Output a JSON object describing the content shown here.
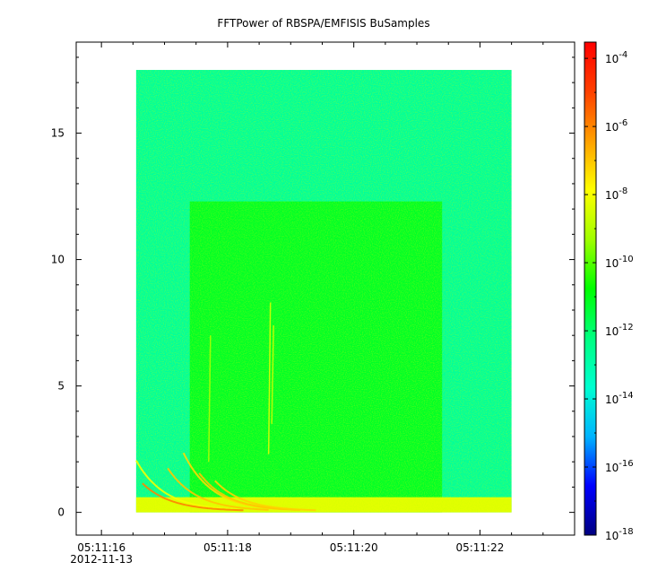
{
  "chart_data": {
    "type": "heatmap",
    "title": "FFTPower of RBSPA/EMFISIS  BuSamples",
    "xlabel": "",
    "ylabel": "",
    "x_axis": {
      "range": [
        "05:11:15.6",
        "05:11:23.5"
      ],
      "ticks": [
        {
          "value": "05:11:16",
          "label": "05:11:16",
          "sublabel": "2012-11-13"
        },
        {
          "value": "05:11:18",
          "label": "05:11:18"
        },
        {
          "value": "05:11:20",
          "label": "05:11:20"
        },
        {
          "value": "05:11:22",
          "label": "05:11:22"
        }
      ],
      "minor_tick_step_s": 0.5
    },
    "y_axis": {
      "range": [
        -0.9,
        18.6
      ],
      "ticks": [
        {
          "value": 0,
          "label": "0"
        },
        {
          "value": 5,
          "label": "5"
        },
        {
          "value": 10,
          "label": "10"
        },
        {
          "value": 15,
          "label": "15"
        }
      ],
      "minor_tick_step": 1
    },
    "data_extent": {
      "x": [
        "05:11:16.55",
        "05:11:22.50"
      ],
      "y": [
        0,
        17.5
      ]
    },
    "colorbar": {
      "scale": "log",
      "range": [
        1e-18,
        0.0003
      ],
      "ticks": [
        {
          "exp": -4,
          "base": "10",
          "sup": "-4"
        },
        {
          "exp": -6,
          "base": "10",
          "sup": "-6"
        },
        {
          "exp": -8,
          "base": "10",
          "sup": "-8"
        },
        {
          "exp": -10,
          "base": "10",
          "sup": "-10"
        },
        {
          "exp": -12,
          "base": "10",
          "sup": "-12"
        },
        {
          "exp": -14,
          "base": "10",
          "sup": "-14"
        },
        {
          "exp": -16,
          "base": "10",
          "sup": "-16"
        },
        {
          "exp": -18,
          "base": "10",
          "sup": "-18"
        }
      ],
      "colors": [
        "#000080",
        "#0000ff",
        "#00b4ff",
        "#00ffd0",
        "#00ff80",
        "#00ff00",
        "#a0ff00",
        "#ffff00",
        "#ffa000",
        "#ff4000",
        "#ff0000"
      ]
    },
    "regions": [
      {
        "name": "background",
        "x": [
          "05:11:16.55",
          "05:11:22.50"
        ],
        "y": [
          0,
          17.5
        ],
        "log10_power": -12.7
      },
      {
        "name": "enhanced-band",
        "x": [
          "05:11:17.40",
          "05:11:21.40"
        ],
        "y": [
          0,
          12.3
        ],
        "log10_power": -11.2
      },
      {
        "name": "low-frequency-floor",
        "x": [
          "05:11:16.55",
          "05:11:22.50"
        ],
        "y": [
          0,
          0.6
        ],
        "log10_power": -8.3
      }
    ],
    "streaks": [
      {
        "time": "05:11:18.65",
        "y": [
          2.3,
          8.3
        ],
        "log10_power": -8.3
      },
      {
        "time": "05:11:18.70",
        "y": [
          3.5,
          7.4
        ],
        "log10_power": -8.6
      },
      {
        "time": "05:11:17.70",
        "y": [
          2.0,
          7.0
        ],
        "log10_power": -9.0
      }
    ],
    "dispersive_tails": [
      {
        "start": "05:11:16.55",
        "y0": 2.0,
        "log10_power": -8.0
      },
      {
        "start": "05:11:16.65",
        "y0": 1.1,
        "log10_power": -6.0
      },
      {
        "start": "05:11:17.05",
        "y0": 1.7,
        "log10_power": -7.0
      },
      {
        "start": "05:11:17.30",
        "y0": 2.3,
        "log10_power": -7.3
      },
      {
        "start": "05:11:17.55",
        "y0": 1.5,
        "log10_power": -7.0
      },
      {
        "start": "05:11:17.80",
        "y0": 1.2,
        "log10_power": -7.2
      }
    ]
  }
}
